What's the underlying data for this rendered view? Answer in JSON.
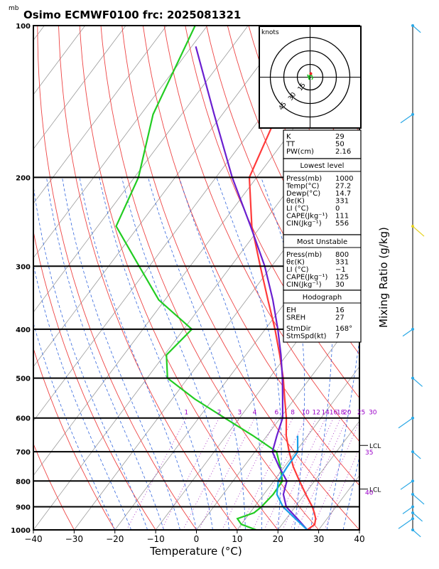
{
  "title": "Osimo ECMWF0100  frc: 2025081321",
  "pressure_unit": "mb",
  "chart_data": {
    "type": "line",
    "title": "Osimo ECMWF0100  frc: 2025081321",
    "xlabel": "Temperature (°C)",
    "ylabel_right": "Mixing Ratio  (g/kg)",
    "xlim": [
      -40,
      40
    ],
    "ylim": [
      1000,
      100
    ],
    "y_scale": "log",
    "x_ticks": [
      -40,
      -30,
      -20,
      -10,
      0,
      10,
      20,
      30,
      40
    ],
    "pressure_ticks": [
      100,
      200,
      300,
      400,
      500,
      600,
      700,
      800,
      900,
      1000
    ],
    "mixing_ratio_labels": [
      "1",
      "2",
      "3",
      "4",
      "6",
      "8",
      "10",
      "12",
      "14",
      "16",
      "18",
      "20",
      "25",
      "30"
    ],
    "mixing_ratio_values": [
      1,
      2,
      3,
      4,
      6,
      8,
      10,
      12,
      14,
      16,
      18,
      20,
      25,
      30
    ],
    "series": [
      {
        "name": "temperature",
        "color": "#ff3a3a",
        "pressure": [
          1000,
          975,
          950,
          925,
          900,
          850,
          800,
          750,
          700,
          650,
          600,
          550,
          500,
          450,
          400,
          350,
          300,
          250,
          200,
          150,
          100
        ],
        "temp": [
          27.2,
          28.0,
          27.2,
          25.8,
          24.2,
          20.3,
          16.3,
          12.2,
          8.4,
          4.7,
          1.5,
          -2.4,
          -6.6,
          -11.7,
          -17.6,
          -24.7,
          -32.8,
          -42.2,
          -51.8,
          -56.5,
          -60.8
        ]
      },
      {
        "name": "dewpoint",
        "color": "#22cc22",
        "pressure": [
          1000,
          975,
          950,
          925,
          900,
          850,
          800,
          750,
          700,
          650,
          600,
          550,
          500,
          450,
          400,
          350,
          300,
          250,
          200,
          150,
          100
        ],
        "temp": [
          14.7,
          10.0,
          8.0,
          11.0,
          11.7,
          12.3,
          12.1,
          9.0,
          5.3,
          -3.5,
          -13.6,
          -24.5,
          -35.0,
          -39.5,
          -38.0,
          -51.5,
          -62.5,
          -75.5,
          -79.0,
          -87.0,
          -93.0
        ]
      },
      {
        "name": "parcel",
        "color": "#6a1fd0",
        "pressure": [
          1000,
          950,
          900,
          850,
          800,
          750,
          700,
          650,
          600,
          550,
          500,
          450,
          400,
          350,
          300,
          250,
          200,
          150,
          110
        ],
        "temp": [
          27.2,
          22.7,
          17.8,
          14.8,
          13.2,
          8.7,
          4.3,
          2.4,
          0.6,
          -2.9,
          -6.8,
          -11.4,
          -16.9,
          -23.5,
          -31.7,
          -42.5,
          -56.0,
          -72.0,
          -89.0
        ]
      },
      {
        "name": "lifted",
        "color": "#1aa0e8",
        "pressure": [
          1000,
          950,
          900,
          850,
          800,
          750,
          700,
          650
        ],
        "temp": [
          27.2,
          22.2,
          17.0,
          13.2,
          11.1,
          10.7,
          10.5,
          7.5
        ]
      }
    ],
    "lcl_labels": [
      {
        "text": "LCL",
        "pressure": 680
      },
      {
        "text": "LCL",
        "pressure": 830
      }
    ],
    "purple_labels": [
      {
        "text": "35",
        "pressure": 700
      },
      {
        "text": "40",
        "pressure": 840
      }
    ],
    "hodograph": {
      "unit": "knots",
      "ring_labels": [
        "15",
        "30",
        "45"
      ],
      "points": [
        [
          2,
          -3
        ],
        [
          3,
          -1
        ],
        [
          2,
          2
        ],
        [
          -1,
          2
        ],
        [
          -1,
          -3
        ],
        [
          -3,
          3
        ]
      ]
    },
    "wind_barbs": {
      "pressures": [
        100,
        150,
        250,
        400,
        500,
        600,
        700,
        800,
        850,
        900,
        925,
        950,
        1000
      ],
      "colors": [
        "#2aa8e6",
        "#2aa8e6",
        "#e6d21e",
        "#2aa8e6",
        "#2aa8e6",
        "#2aa8e6",
        "#2aa8e6",
        "#2aa8e6",
        "#2aa8e6",
        "#2aa8e6",
        "#2aa8e6",
        "#2aa8e6",
        "#2aa8e6"
      ]
    }
  },
  "indices": {
    "top": [
      {
        "label": "K",
        "value": "29"
      },
      {
        "label": "TT",
        "value": "50"
      },
      {
        "label": "PW(cm)",
        "value": "2.16"
      }
    ],
    "lowest_head": "Lowest level",
    "lowest": [
      {
        "label": "Press(mb)",
        "value": "1000"
      },
      {
        "label": "Temp(°C)",
        "value": "27.2"
      },
      {
        "label": "Dewp(°C)",
        "value": "14.7"
      },
      {
        "label": "θε(K)",
        "value": "331"
      },
      {
        "label": "LI (°C)",
        "value": "0"
      },
      {
        "label": "CAPE(Jkg⁻¹)",
        "value": "111"
      },
      {
        "label": "CIN(Jkg⁻¹)",
        "value": "556"
      }
    ],
    "unstable_head": "Most Unstable",
    "unstable": [
      {
        "label": "Press(mb)",
        "value": "800"
      },
      {
        "label": "θε(K)",
        "value": "331"
      },
      {
        "label": "LI (°C)",
        "value": "−1"
      },
      {
        "label": "CAPE(Jkg⁻¹)",
        "value": "125"
      },
      {
        "label": "CIN(Jkg⁻¹)",
        "value": "30"
      }
    ],
    "hodo_head": "Hodograph",
    "hodo": [
      {
        "label": "EH",
        "value": "16"
      },
      {
        "label": "SREH",
        "value": "27"
      }
    ],
    "storm": [
      {
        "label": "StmDir",
        "value": "168°"
      },
      {
        "label": "StmSpd(kt)",
        "value": "7"
      }
    ]
  }
}
